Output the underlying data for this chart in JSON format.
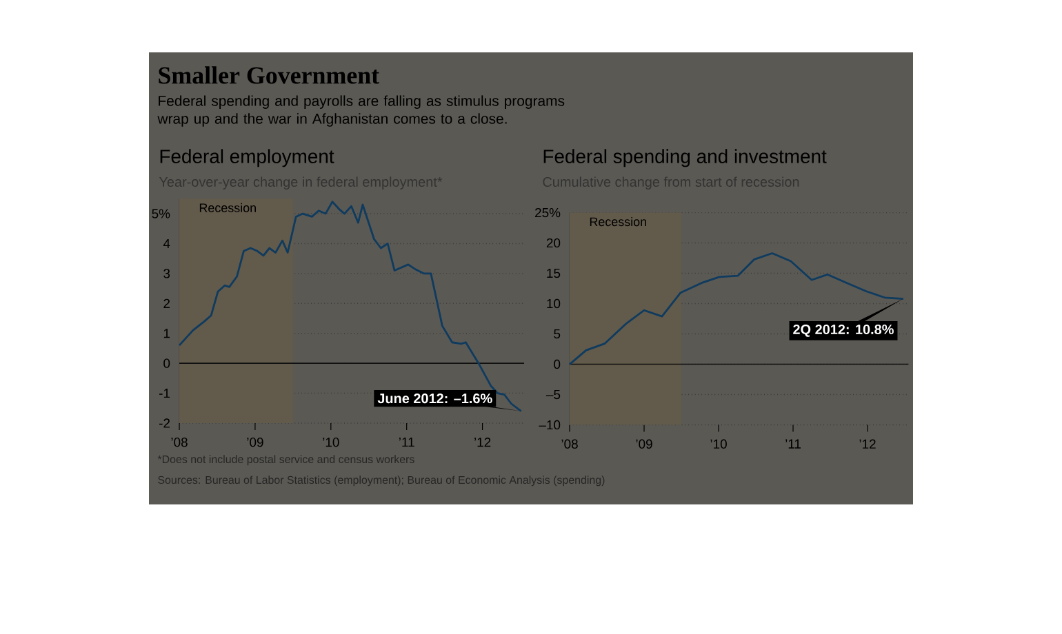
{
  "chart_data": [
    {
      "type": "other",
      "title": "Smaller Government",
      "subtitle": "Federal spending and payrolls are falling as stimulus programs wrap up and the war in Afghanistan comes to a close.",
      "annotations": [
        "*Does not include postal service and census workers",
        "Sources: Bureau of Labor Statistics (employment); Bureau of Economic Analysis (spending)"
      ]
    },
    {
      "type": "line",
      "title": "Federal employment",
      "subtitle": "Year-over-year change in federal employment*",
      "x": [
        2008.0,
        2008.18,
        2008.33,
        2008.42,
        2008.51,
        2008.6,
        2008.66,
        2008.76,
        2008.85,
        2008.94,
        2009.03,
        2009.11,
        2009.19,
        2009.27,
        2009.36,
        2009.43,
        2009.54,
        2009.63,
        2009.75,
        2009.84,
        2009.93,
        2010.02,
        2010.11,
        2010.18,
        2010.27,
        2010.36,
        2010.42,
        2010.57,
        2010.66,
        2010.75,
        2010.84,
        2011.02,
        2011.11,
        2011.23,
        2011.32,
        2011.47,
        2011.6,
        2011.72,
        2011.78,
        2011.96,
        2012.11,
        2012.2,
        2012.29,
        2012.38,
        2012.51
      ],
      "series": [
        {
          "color": "#0f3b5f",
          "values": [
            0.6,
            1.1,
            1.4,
            1.6,
            2.4,
            2.6,
            2.55,
            2.9,
            3.75,
            3.85,
            3.75,
            3.6,
            3.85,
            3.7,
            4.1,
            3.7,
            4.9,
            5.0,
            4.9,
            5.1,
            5.0,
            5.4,
            5.15,
            5.0,
            5.25,
            4.7,
            5.3,
            4.15,
            3.85,
            4.0,
            3.1,
            3.3,
            3.15,
            3.0,
            3.0,
            1.25,
            0.7,
            0.65,
            0.7,
            -0.05,
            -0.75,
            -1.0,
            -1.05,
            -1.35,
            -1.6
          ]
        }
      ],
      "xlim": [
        2008,
        2012.55
      ],
      "ylim": [
        -2,
        5.5
      ],
      "xticks": [
        {
          "value": 2008,
          "label": "’08"
        },
        {
          "value": 2009,
          "label": "’09"
        },
        {
          "value": 2010,
          "label": "’10"
        },
        {
          "value": 2011,
          "label": "’11"
        },
        {
          "value": 2012,
          "label": "’12"
        }
      ],
      "yticks": [
        {
          "value": 5,
          "label": "5%"
        },
        4,
        3,
        2,
        1,
        0,
        -1,
        -2
      ],
      "grid": "y",
      "bands": [
        {
          "axis": "x",
          "from": 2008,
          "to": 2009.5,
          "label": "Recession",
          "color": "#625a4b"
        }
      ],
      "ref_lines": [
        {
          "axis": "y",
          "value": 0,
          "color": "#111111"
        }
      ],
      "annotations": [
        {
          "text": "June 2012: –1.6%",
          "x": 2012.51,
          "y": -1.6
        }
      ]
    },
    {
      "type": "line",
      "title": "Federal spending and investment",
      "subtitle": "Cumulative change from start of recession",
      "x": [
        2008.0,
        2008.22,
        2008.47,
        2008.75,
        2009.0,
        2009.24,
        2009.49,
        2009.77,
        2010.01,
        2010.26,
        2010.48,
        2010.72,
        2010.97,
        2011.25,
        2011.46,
        2011.74,
        2011.99,
        2012.23,
        2012.48
      ],
      "series": [
        {
          "color": "#0f3b5f",
          "values": [
            0,
            2.3,
            3.4,
            6.6,
            8.9,
            7.9,
            11.8,
            13.4,
            14.4,
            14.6,
            17.3,
            18.3,
            17.0,
            13.9,
            14.8,
            13.3,
            12.0,
            11.0,
            10.8
          ]
        }
      ],
      "xlim": [
        2008,
        2012.55
      ],
      "ylim": [
        -10,
        25
      ],
      "xticks": [
        {
          "value": 2008,
          "label": "’08"
        },
        {
          "value": 2009,
          "label": "’09"
        },
        {
          "value": 2010,
          "label": "’10"
        },
        {
          "value": 2011,
          "label": "’11"
        },
        {
          "value": 2012,
          "label": "’12"
        }
      ],
      "yticks": [
        {
          "value": 25,
          "label": "25%"
        },
        20,
        15,
        10,
        5,
        0,
        {
          "value": -5,
          "label": "–5"
        },
        {
          "value": -10,
          "label": "–10"
        }
      ],
      "grid": "y",
      "bands": [
        {
          "axis": "x",
          "from": 2008,
          "to": 2009.5,
          "label": "Recession",
          "color": "#625a4b"
        }
      ],
      "ref_lines": [
        {
          "axis": "y",
          "value": 0,
          "color": "#111111"
        }
      ],
      "annotations": [
        {
          "text": "2Q 2012: 10.8%",
          "x": 2012.48,
          "y": 10.8
        }
      ]
    }
  ]
}
